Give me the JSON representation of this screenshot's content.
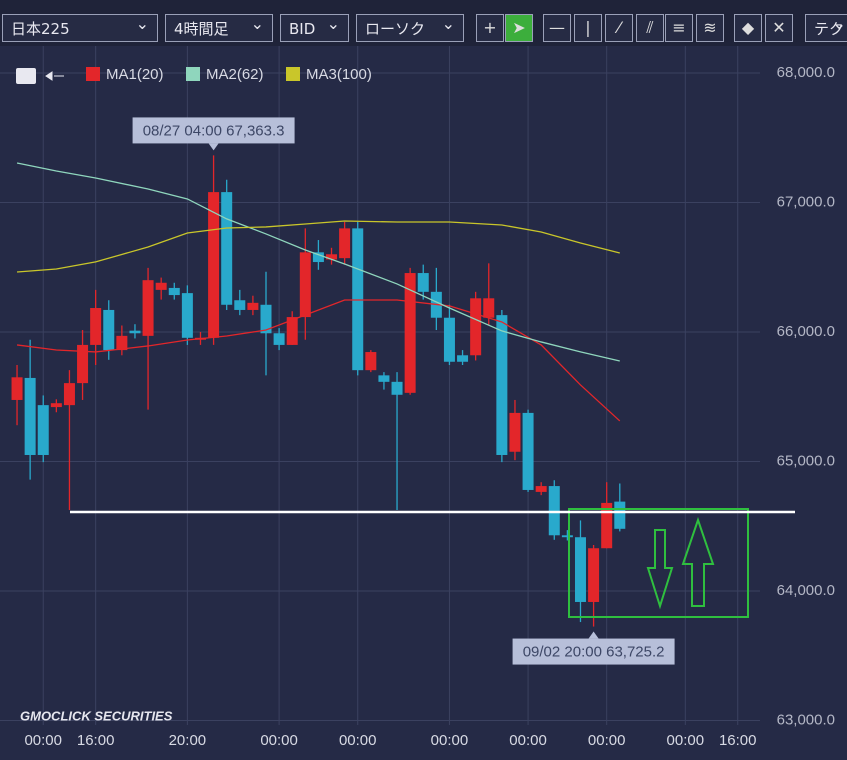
{
  "toolbar": {
    "symbol": "日本225",
    "timeframe": "4時間足",
    "side": "BID",
    "chart_type": "ローソク",
    "tech": "テク"
  },
  "logo": "GMOCLICK SECURITIES",
  "chart_data": {
    "type": "candlestick",
    "up_color": "#e3262a",
    "down_color": "#29a9cc",
    "open": [
      65475,
      65645,
      65435,
      65420,
      65435,
      65605,
      65900,
      66170,
      65860,
      66010,
      65970,
      66325,
      66340,
      66300,
      65940,
      65955,
      67080,
      66245,
      66170,
      66210,
      65990,
      65900,
      66115,
      66615,
      66560,
      66570,
      66800,
      65705,
      65665,
      65615,
      65530,
      66455,
      66310,
      66110,
      65820,
      65820,
      66110,
      66130,
      65075,
      65375,
      64765,
      64810,
      64430,
      64415,
      63915,
      64330,
      64690
    ],
    "high": [
      65745,
      65940,
      65510,
      65480,
      65705,
      66015,
      66325,
      66245,
      66050,
      66060,
      66495,
      66420,
      66380,
      66360,
      66000,
      67363.3,
      67175,
      66325,
      66280,
      66465,
      66030,
      66160,
      66800,
      66710,
      66650,
      66850,
      66850,
      65860,
      65690,
      65690,
      66495,
      66520,
      66495,
      66210,
      65860,
      66310,
      66530,
      66170,
      65475,
      65400,
      64840,
      64855,
      64470,
      64545,
      64355,
      64840,
      64830
    ],
    "low": [
      65280,
      64860,
      64995,
      65380,
      64625,
      65475,
      65745,
      65785,
      65820,
      65950,
      65400,
      66250,
      66250,
      65900,
      65900,
      65900,
      66170,
      66130,
      66130,
      65665,
      65860,
      65900,
      65940,
      66480,
      66520,
      66520,
      65665,
      65690,
      65555,
      64625,
      65515,
      66250,
      66015,
      65745,
      65745,
      65780,
      66050,
      64995,
      65010,
      64765,
      64740,
      64395,
      64390,
      63760,
      63725.2,
      64330,
      64460
    ],
    "close": [
      65650,
      65050,
      65050,
      65450,
      65605,
      65900,
      66185,
      65860,
      65970,
      65990,
      66400,
      66380,
      66285,
      65955,
      65955,
      67080,
      66210,
      66170,
      66225,
      65990,
      65900,
      66115,
      66615,
      66540,
      66600,
      66800,
      65705,
      65845,
      65615,
      65515,
      66455,
      66310,
      66110,
      65770,
      65770,
      66260,
      66260,
      65050,
      65375,
      64780,
      64810,
      64430,
      64415,
      63915,
      64330,
      64680,
      64480
    ],
    "series": [
      {
        "name": "MA1(20)",
        "color": "#e3262a",
        "x": [
          0,
          3,
          6,
          10,
          13,
          16,
          19,
          22,
          25,
          29,
          33,
          37,
          40,
          43,
          46
        ],
        "values": [
          65900,
          65861,
          65846,
          65892,
          65938,
          65969,
          66015,
          66131,
          66247,
          66247,
          66201,
          66077,
          65900,
          65591,
          65313
        ]
      },
      {
        "name": "MA2(62)",
        "color": "#8fd6bd",
        "x": [
          0,
          3,
          6,
          10,
          13,
          16,
          19,
          22,
          25,
          29,
          33,
          37,
          40,
          43,
          46
        ],
        "values": [
          67305,
          67243,
          67189,
          67104,
          67027,
          66873,
          66757,
          66633,
          66525,
          66371,
          66185,
          66008,
          65923,
          65846,
          65776
        ]
      },
      {
        "name": "MA3(100)",
        "color": "#c9c62a",
        "x": [
          0,
          3,
          6,
          10,
          13,
          16,
          19,
          22,
          25,
          29,
          33,
          37,
          40,
          43,
          46
        ],
        "values": [
          66463,
          66486,
          66541,
          66656,
          66764,
          66803,
          66811,
          66834,
          66857,
          66849,
          66849,
          66826,
          66772,
          66687,
          66610
        ]
      }
    ],
    "annotations": [
      {
        "label": "08/27 04:00 67,363.3",
        "value": 67363.3
      },
      {
        "label": "09/02 20:00 63,725.2",
        "value": 63725.2
      }
    ],
    "horizontal_line": 64610,
    "xlim": [
      -1.3,
      56.7
    ],
    "xticks": [
      {
        "value": 2,
        "label": "00:00"
      },
      {
        "value": 6,
        "label": "16:00"
      },
      {
        "value": 13,
        "label": "20:00"
      },
      {
        "value": 20,
        "label": "00:00"
      },
      {
        "value": 26,
        "label": "00:00"
      },
      {
        "value": 33,
        "label": "00:00"
      },
      {
        "value": 39,
        "label": "00:00"
      },
      {
        "value": 45,
        "label": "00:00"
      },
      {
        "value": 51,
        "label": "00:00"
      },
      {
        "value": 55,
        "label": "16:00"
      }
    ],
    "ylim": [
      62965,
      68216
    ],
    "yticks": [
      {
        "value": 63000,
        "label": "63,000.0"
      },
      {
        "value": 64000,
        "label": "64,000.0"
      },
      {
        "value": 65000,
        "label": "65,000.0"
      },
      {
        "value": 66000,
        "label": "66,000.0"
      },
      {
        "value": 67000,
        "label": "67,000.0"
      },
      {
        "value": 68000,
        "label": "68,000.0"
      }
    ],
    "grid": true
  }
}
